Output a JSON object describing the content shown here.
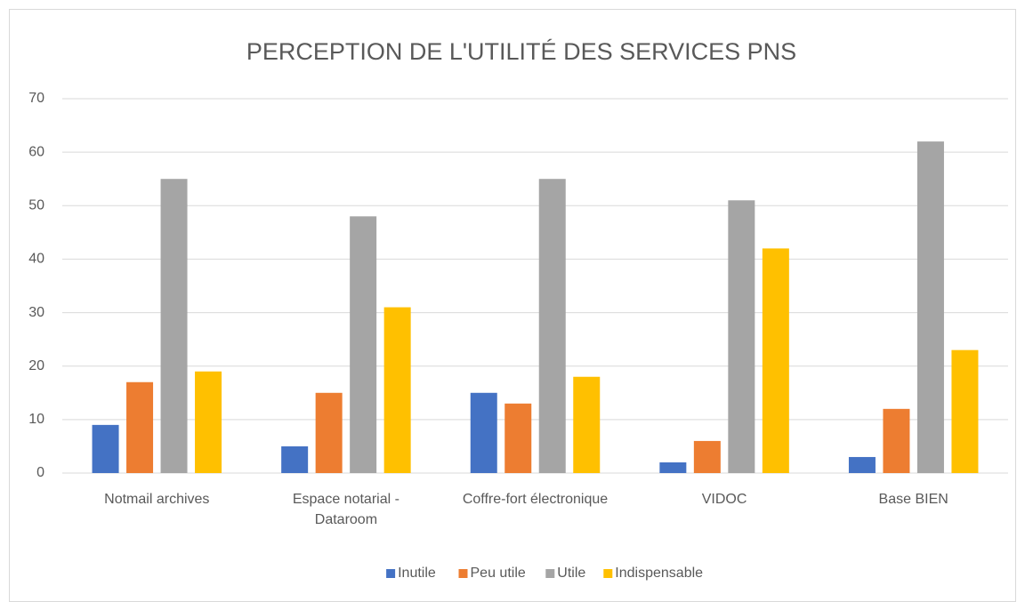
{
  "chart_data": {
    "type": "bar",
    "title": "PERCEPTION DE L'UTILITÉ DES SERVICES PNS",
    "categories": [
      "Notmail archives",
      "Espace notarial - Dataroom",
      "Coffre-fort électronique",
      "VIDOC",
      "Base BIEN"
    ],
    "series": [
      {
        "name": "Inutile",
        "color": "#4472c4",
        "values": [
          9,
          5,
          15,
          2,
          3
        ]
      },
      {
        "name": "Peu utile",
        "color": "#ed7d31",
        "values": [
          17,
          15,
          13,
          6,
          12
        ]
      },
      {
        "name": "Utile",
        "color": "#a5a5a5",
        "values": [
          55,
          48,
          55,
          51,
          62
        ]
      },
      {
        "name": "Indispensable",
        "color": "#ffc000",
        "values": [
          19,
          31,
          18,
          42,
          23
        ]
      }
    ],
    "ylim": [
      0,
      70
    ],
    "yticks": [
      0,
      10,
      20,
      30,
      40,
      50,
      60,
      70
    ],
    "grid": true,
    "legend": "bottom"
  }
}
